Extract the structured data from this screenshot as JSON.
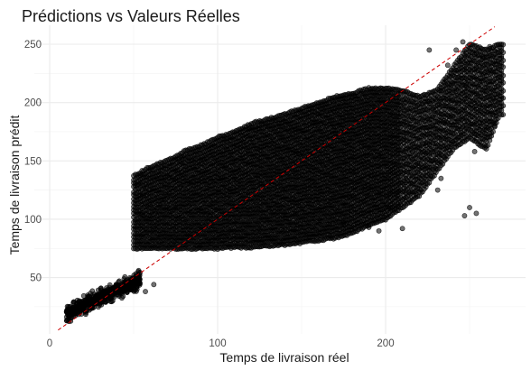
{
  "chart_data": {
    "type": "scatter",
    "title": "Prédictions vs Valeurs Réelles",
    "xlabel": "Temps de livraison réel",
    "ylabel": "Temps de livraison prédit",
    "xlim": [
      0,
      280
    ],
    "ylim": [
      12,
      260
    ],
    "x_ticks": [
      0,
      100,
      200
    ],
    "y_ticks": [
      50,
      100,
      150,
      200,
      250
    ],
    "grid": true,
    "reference_line": {
      "slope": 1,
      "intercept": 0,
      "style": "dashed",
      "color": "#cc0000"
    },
    "point_color": "#000000",
    "point_opacity": 0.55,
    "clusters": [
      {
        "x_range": [
          10,
          55
        ],
        "y_center": "x",
        "y_spread": 8,
        "description_only": false
      },
      {
        "x_range": [
          50,
          270
        ],
        "per_integer_x": true
      }
    ],
    "columns": [
      {
        "x": 50,
        "y_min": 75,
        "y_max": 137
      },
      {
        "x": 60,
        "y_min": 75,
        "y_max": 145
      },
      {
        "x": 70,
        "y_min": 75,
        "y_max": 150
      },
      {
        "x": 80,
        "y_min": 75,
        "y_max": 158
      },
      {
        "x": 90,
        "y_min": 75,
        "y_max": 163
      },
      {
        "x": 100,
        "y_min": 75,
        "y_max": 170
      },
      {
        "x": 110,
        "y_min": 76,
        "y_max": 175
      },
      {
        "x": 120,
        "y_min": 76,
        "y_max": 182
      },
      {
        "x": 130,
        "y_min": 77,
        "y_max": 186
      },
      {
        "x": 140,
        "y_min": 78,
        "y_max": 190
      },
      {
        "x": 150,
        "y_min": 80,
        "y_max": 195
      },
      {
        "x": 160,
        "y_min": 82,
        "y_max": 200
      },
      {
        "x": 170,
        "y_min": 84,
        "y_max": 205
      },
      {
        "x": 180,
        "y_min": 88,
        "y_max": 208
      },
      {
        "x": 190,
        "y_min": 95,
        "y_max": 212
      },
      {
        "x": 200,
        "y_min": 100,
        "y_max": 212
      },
      {
        "x": 210,
        "y_min": 110,
        "y_max": 210
      },
      {
        "x": 220,
        "y_min": 120,
        "y_max": 205
      },
      {
        "x": 230,
        "y_min": 140,
        "y_max": 210
      },
      {
        "x": 240,
        "y_min": 160,
        "y_max": 230
      },
      {
        "x": 250,
        "y_min": 170,
        "y_max": 250
      },
      {
        "x": 260,
        "y_min": 160,
        "y_max": 245
      },
      {
        "x": 268,
        "y_min": 190,
        "y_max": 250
      }
    ],
    "outliers": [
      [
        52,
        40
      ],
      [
        57,
        38
      ],
      [
        62,
        44
      ],
      [
        175,
        97
      ],
      [
        190,
        93
      ],
      [
        196,
        90
      ],
      [
        210,
        92
      ],
      [
        231,
        125
      ],
      [
        233,
        135
      ],
      [
        250,
        110
      ],
      [
        254,
        105
      ],
      [
        247,
        103
      ],
      [
        246,
        252
      ],
      [
        242,
        245
      ],
      [
        258,
        238
      ],
      [
        262,
        248
      ],
      [
        265,
        180
      ],
      [
        253,
        158
      ],
      [
        226,
        245
      ],
      [
        237,
        232
      ],
      [
        248,
        215
      ]
    ]
  }
}
